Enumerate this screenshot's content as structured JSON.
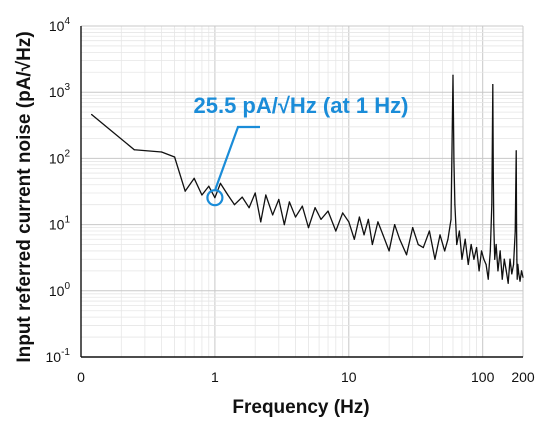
{
  "chart_data": {
    "type": "line",
    "title": "",
    "xlabel": "Frequency (Hz)",
    "ylabel": "Input referred current noise (pA/√Hz)",
    "x_scale": "log",
    "y_scale": "log",
    "xlim": [
      0.1,
      200
    ],
    "ylim": [
      0.1,
      10000
    ],
    "grid": true,
    "x_ticks": [
      {
        "value": 0.1,
        "label": "0"
      },
      {
        "value": 1,
        "label": "1"
      },
      {
        "value": 10,
        "label": "10"
      },
      {
        "value": 100,
        "label": "100"
      },
      {
        "value": 200,
        "label": "200"
      }
    ],
    "y_ticks": [
      {
        "value": 0.1,
        "base": "10",
        "exp": "-1"
      },
      {
        "value": 1,
        "base": "10",
        "exp": "0"
      },
      {
        "value": 10,
        "base": "10",
        "exp": "1"
      },
      {
        "value": 100,
        "base": "10",
        "exp": "2"
      },
      {
        "value": 1000,
        "base": "10",
        "exp": "3"
      },
      {
        "value": 10000,
        "base": "10",
        "exp": "4"
      }
    ],
    "series": [
      {
        "color": "#111111",
        "x": [
          0.12,
          0.25,
          0.4,
          0.5,
          0.6,
          0.7,
          0.8,
          0.9,
          1.0,
          1.1,
          1.25,
          1.4,
          1.6,
          1.8,
          2.0,
          2.2,
          2.4,
          2.7,
          3.0,
          3.3,
          3.6,
          4.0,
          4.5,
          5.0,
          5.6,
          6.2,
          7.0,
          8.0,
          9.0,
          10,
          11,
          12,
          13,
          14,
          15,
          16.5,
          18,
          20,
          22,
          24,
          27,
          30,
          33,
          36,
          40,
          44,
          48,
          52,
          55,
          58,
          60,
          61,
          62,
          64,
          67,
          70,
          74,
          78,
          82,
          86,
          90,
          94,
          98,
          102,
          106,
          110,
          114,
          117,
          119,
          120,
          121,
          123,
          126,
          130,
          135,
          140,
          145,
          150,
          155,
          160,
          165,
          170,
          175,
          178,
          179,
          180,
          181,
          183,
          186,
          190,
          195,
          200
        ],
        "y": [
          460,
          135,
          125,
          105,
          32,
          50,
          28,
          38,
          25.5,
          42,
          28,
          20,
          26,
          18,
          30,
          11,
          28,
          14,
          24,
          10,
          22,
          13,
          19,
          9,
          18,
          12,
          16,
          8,
          15,
          11,
          6,
          13,
          7,
          12,
          5,
          11,
          7,
          4,
          10,
          6,
          3.5,
          9,
          5,
          4.5,
          8,
          3,
          7,
          4,
          6,
          12,
          1800,
          90,
          20,
          5,
          8,
          3,
          6,
          2.5,
          5,
          3,
          4.5,
          2,
          4,
          3,
          2.5,
          1.5,
          4,
          20,
          1300,
          60,
          10,
          3,
          5,
          2,
          4,
          1.5,
          3,
          2,
          1.3,
          3,
          1.8,
          2.5,
          8,
          130,
          10,
          3,
          1.5,
          2.5,
          1.8,
          1.4,
          2,
          1.6
        ]
      }
    ],
    "annotations": [
      {
        "text": "25.5 pA/√Hz (at 1 Hz)",
        "x": 1,
        "y": 25.5,
        "color": "#1a8cd8"
      }
    ]
  }
}
